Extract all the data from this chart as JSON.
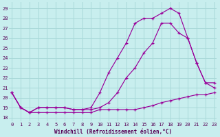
{
  "xlabel": "Windchill (Refroidissement éolien,°C)",
  "bg_color": "#c8eeee",
  "grid_color": "#a8d8d8",
  "line_color": "#990099",
  "x_ticks": [
    0,
    1,
    2,
    3,
    4,
    5,
    6,
    7,
    8,
    9,
    10,
    11,
    12,
    13,
    14,
    15,
    16,
    17,
    18,
    19,
    20,
    21,
    22,
    23
  ],
  "y_ticks": [
    18,
    19,
    20,
    21,
    22,
    23,
    24,
    25,
    26,
    27,
    28,
    29
  ],
  "xlim": [
    -0.3,
    23.3
  ],
  "ylim": [
    17.6,
    29.6
  ],
  "line1_x": [
    0,
    1,
    2,
    3,
    4,
    5,
    6,
    7,
    8,
    9,
    10,
    11,
    12,
    13,
    14,
    15,
    16,
    17,
    18,
    19,
    20,
    21,
    22,
    23
  ],
  "line1_y": [
    20.5,
    19.0,
    18.5,
    18.5,
    18.5,
    18.5,
    18.5,
    18.5,
    18.5,
    18.5,
    18.8,
    18.8,
    18.8,
    18.8,
    18.8,
    19.0,
    19.2,
    19.5,
    19.7,
    19.9,
    20.1,
    20.3,
    20.3,
    20.5
  ],
  "line2_x": [
    0,
    1,
    2,
    3,
    4,
    5,
    6,
    7,
    8,
    9,
    10,
    11,
    12,
    13,
    14,
    15,
    16,
    17,
    18,
    19,
    20,
    21,
    22,
    23
  ],
  "line2_y": [
    20.5,
    19.0,
    18.5,
    19.0,
    19.0,
    19.0,
    19.0,
    18.8,
    18.8,
    18.8,
    19.0,
    19.5,
    20.5,
    22.0,
    23.0,
    24.5,
    25.5,
    27.5,
    27.5,
    26.5,
    26.0,
    23.5,
    21.5,
    21.0
  ],
  "line3_x": [
    0,
    1,
    2,
    3,
    4,
    5,
    6,
    7,
    8,
    9,
    10,
    11,
    12,
    13,
    14,
    15,
    16,
    17,
    18,
    19,
    20,
    21,
    22,
    23
  ],
  "line3_y": [
    20.5,
    19.0,
    18.5,
    19.0,
    19.0,
    19.0,
    19.0,
    18.8,
    18.8,
    19.0,
    20.5,
    22.5,
    24.0,
    25.5,
    27.5,
    28.0,
    28.0,
    28.5,
    29.0,
    28.5,
    26.0,
    23.5,
    21.5,
    21.5
  ],
  "xlabel_fontsize": 5.5,
  "tick_fontsize": 5.0
}
